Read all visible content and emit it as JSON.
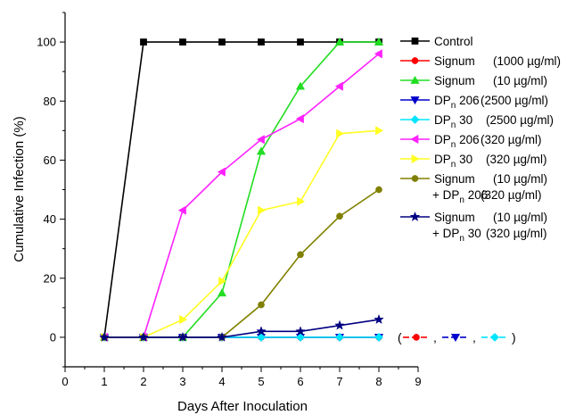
{
  "chart_data": {
    "type": "line",
    "xlabel": "Days After Inoculation",
    "ylabel": "Cumulative Infection (%)",
    "xlim": [
      0,
      9
    ],
    "ylim": [
      -10,
      110
    ],
    "xticks": [
      0,
      1,
      2,
      3,
      4,
      5,
      6,
      7,
      8,
      9
    ],
    "yticks": [
      0,
      20,
      40,
      60,
      80,
      100
    ],
    "grid": false,
    "legend_position": "right",
    "x": [
      1,
      2,
      3,
      4,
      5,
      6,
      7,
      8
    ],
    "series": [
      {
        "id": "control",
        "label": "Control",
        "color": "#000000",
        "marker": "square",
        "values": [
          0,
          100,
          100,
          100,
          100,
          100,
          100,
          100
        ]
      },
      {
        "id": "signum-1000",
        "label": "Signum",
        "label_sub": "",
        "label_conc": "(1000 µg/ml)",
        "color": "#ff0000",
        "marker": "circle",
        "values": [
          0,
          0,
          0,
          0,
          0,
          0,
          0,
          0
        ]
      },
      {
        "id": "signum-10",
        "label": "Signum",
        "label_sub": "",
        "label_conc": "(10 µg/ml)",
        "color": "#22dd22",
        "marker": "triangle-up",
        "values": [
          0,
          0,
          0,
          15,
          63,
          85,
          100,
          100
        ]
      },
      {
        "id": "dp206-2500",
        "label": "DP",
        "label_sub": "n",
        "label_num": "206",
        "label_conc": "(2500 µg/ml)",
        "color": "#0000cc",
        "marker": "triangle-down",
        "values": [
          0,
          0,
          0,
          0,
          0,
          0,
          0,
          0
        ]
      },
      {
        "id": "dp30-2500",
        "label": "DP",
        "label_sub": "n",
        "label_num": "30",
        "label_conc": "(2500 µg/ml)",
        "color": "#00e5ff",
        "marker": "diamond",
        "values": [
          0,
          0,
          0,
          0,
          0,
          0,
          0,
          0
        ]
      },
      {
        "id": "dp206-320",
        "label": "DP",
        "label_sub": "n",
        "label_num": "206",
        "label_conc": "(320 µg/ml)",
        "color": "#ff22ff",
        "marker": "triangle-left",
        "values": [
          0,
          0,
          43,
          56,
          67,
          74,
          85,
          96
        ]
      },
      {
        "id": "dp30-320",
        "label": "DP",
        "label_sub": "n",
        "label_num": "30",
        "label_conc": "(320 µg/ml)",
        "color": "#ffff22",
        "marker": "triangle-right",
        "values": [
          0,
          0,
          6,
          19,
          43,
          46,
          69,
          70
        ]
      },
      {
        "id": "signum10-dp206-320",
        "label": "Signum",
        "label_conc": "(10 µg/ml)",
        "label2_prefix": "+ DP",
        "label2_sub": "n",
        "label2_num": "206",
        "label2_conc": "(320 µg/ml)",
        "color": "#808000",
        "marker": "circle",
        "values": [
          0,
          0,
          0,
          0,
          11,
          28,
          41,
          50
        ]
      },
      {
        "id": "signum10-dp30-320",
        "label": "Signum",
        "label_conc": "(10 µg/ml)",
        "label2_prefix": "+ DP",
        "label2_sub": "n",
        "label2_num": "30",
        "label2_conc": "(320 µg/ml)",
        "color": "#000080",
        "marker": "star",
        "values": [
          0,
          0,
          0,
          0,
          2,
          2,
          4,
          6
        ]
      }
    ],
    "annotation": {
      "open": "(",
      "sep": ",",
      "close": ")",
      "colors": [
        "#ff0000",
        "#0000cc",
        "#00e5ff"
      ],
      "markers": [
        "circle",
        "triangle-down",
        "diamond"
      ]
    }
  }
}
